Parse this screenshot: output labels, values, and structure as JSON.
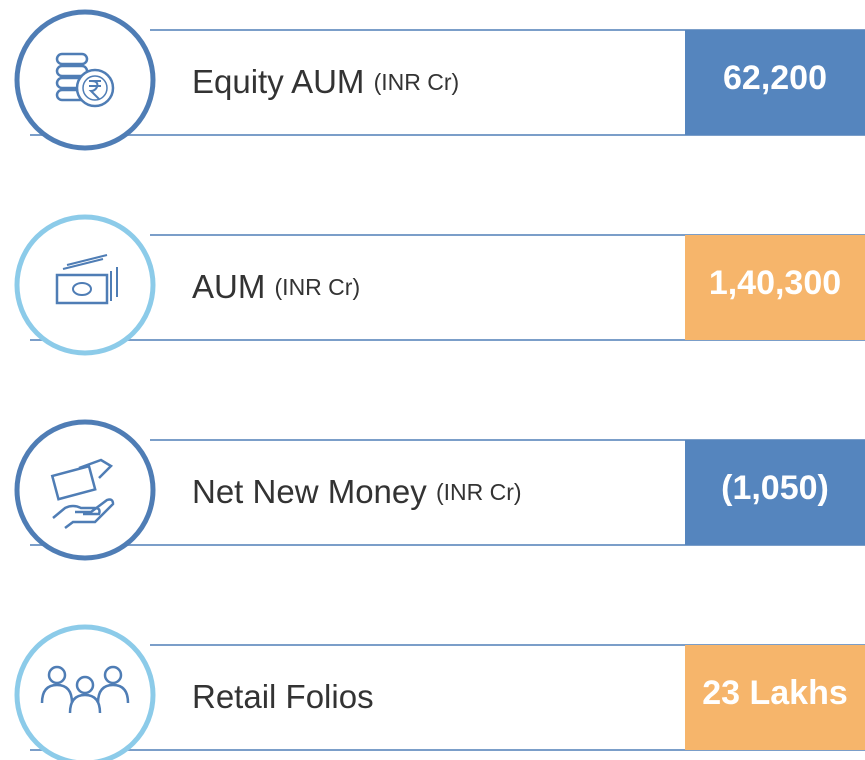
{
  "rows": [
    {
      "label": "Equity AUM",
      "unit": "(INR Cr)",
      "value": "62,200"
    },
    {
      "label": "AUM",
      "unit": "(INR Cr)",
      "value": "1,40,300"
    },
    {
      "label": "Net New Money",
      "unit": "(INR Cr)",
      "value": "(1,050)"
    },
    {
      "label": "Retail Folios",
      "value": "23 Lakhs"
    }
  ]
}
